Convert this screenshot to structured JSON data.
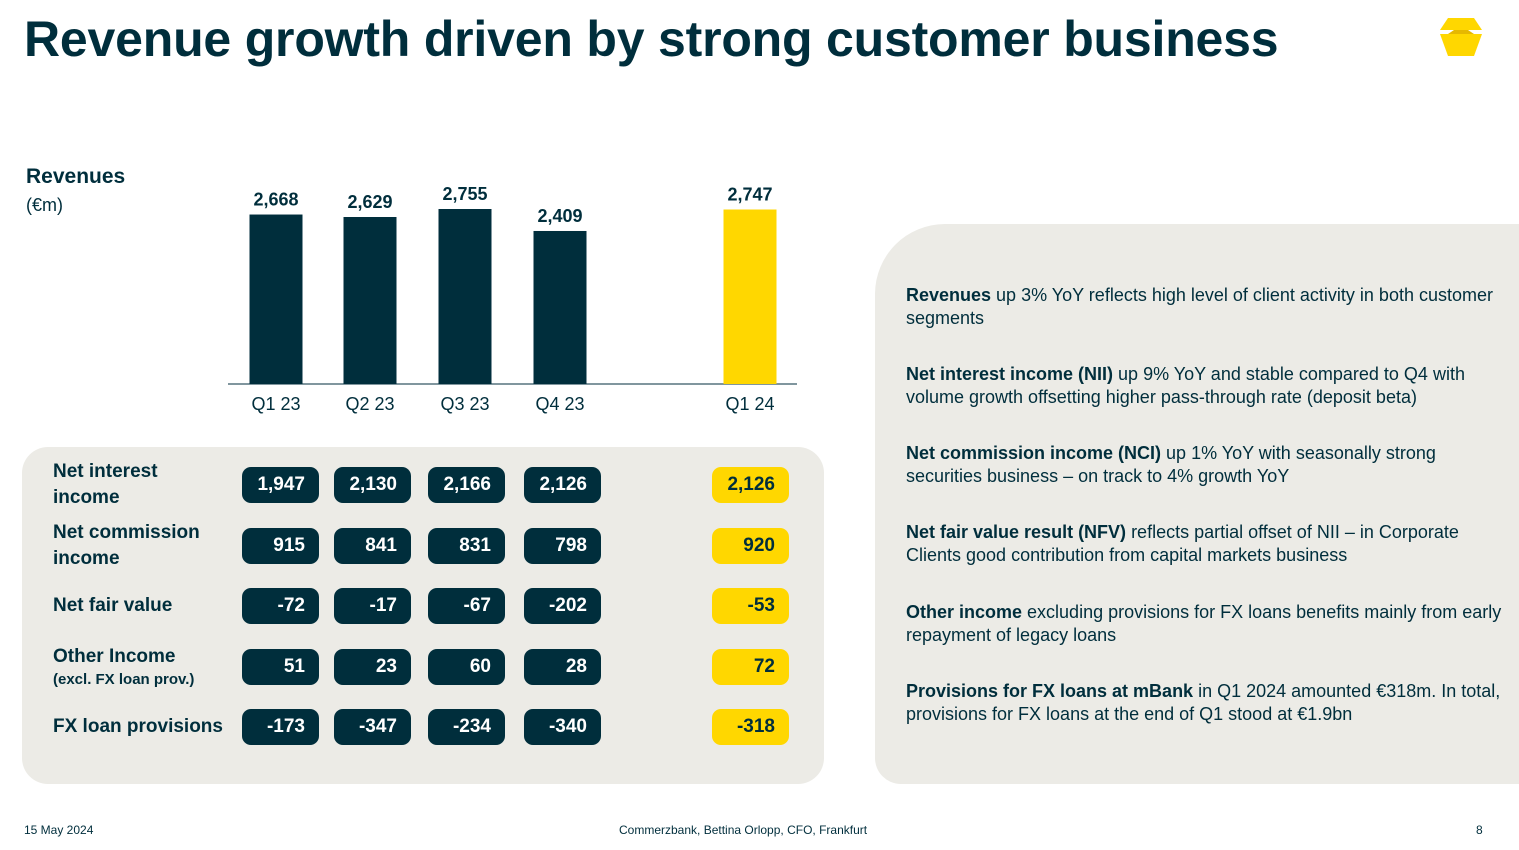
{
  "page": {
    "title": "Revenue growth driven by strong customer business",
    "footer_date": "15 May 2024",
    "footer_center": "Commerzbank, Bettina Orlopp, CFO, Frankfurt",
    "page_number": "8"
  },
  "colors": {
    "navy": "#002e3c",
    "yellow": "#ffd700",
    "panel": "#ecebe6"
  },
  "chart_label": "Revenues",
  "chart_unit": "(€m)",
  "chart_data": {
    "type": "bar",
    "title": "Revenues",
    "ylabel": "(€m)",
    "categories": [
      "Q1 23",
      "Q2 23",
      "Q3 23",
      "Q4 23",
      "Q1 24"
    ],
    "values": [
      2668,
      2629,
      2755,
      2409,
      2747
    ],
    "value_labels": [
      "2,668",
      "2,629",
      "2,755",
      "2,409",
      "2,747"
    ],
    "highlight_index": 4,
    "ylim": [
      0,
      2755
    ],
    "grid": false
  },
  "table": {
    "rows": [
      {
        "label": "Net interest",
        "label2": "income",
        "sub": "",
        "values": [
          "1,947",
          "2,130",
          "2,166",
          "2,126",
          "2,126"
        ]
      },
      {
        "label": "Net commission",
        "label2": "income",
        "sub": "",
        "values": [
          "915",
          "841",
          "831",
          "798",
          "920"
        ]
      },
      {
        "label": "Net fair value",
        "label2": "",
        "sub": "",
        "values": [
          "-72",
          "-17",
          "-67",
          "-202",
          "-53"
        ]
      },
      {
        "label": "Other Income",
        "label2": "",
        "sub": "(excl. FX loan prov.)",
        "values": [
          "51",
          "23",
          "60",
          "28",
          "72"
        ]
      },
      {
        "label": "FX loan provisions",
        "label2": "",
        "sub": "",
        "values": [
          "-173",
          "-347",
          "-234",
          "-340",
          "-318"
        ]
      }
    ]
  },
  "comments": [
    {
      "bold": "Revenues",
      "text": " up 3% YoY reflects high level of client activity in both customer segments"
    },
    {
      "bold": "Net interest income (NII)",
      "text": " up 9% YoY and stable compared to Q4 with volume growth offsetting higher pass-through rate (deposit beta)"
    },
    {
      "bold": "Net commission income (NCI)",
      "text": " up 1% YoY with seasonally strong securities business – on track to 4% growth YoY"
    },
    {
      "bold": "Net fair value result (NFV)",
      "text": " reflects partial offset of NII – in Corporate Clients good contribution from capital markets business"
    },
    {
      "bold": "Other income",
      "text": " excluding provisions for FX loans benefits mainly from early repayment of legacy loans"
    },
    {
      "bold": "Provisions for FX loans at mBank",
      "text": " in Q1 2024 amounted €318m. In total, provisions for FX loans at the end of Q1 stood at €1.9bn"
    }
  ]
}
